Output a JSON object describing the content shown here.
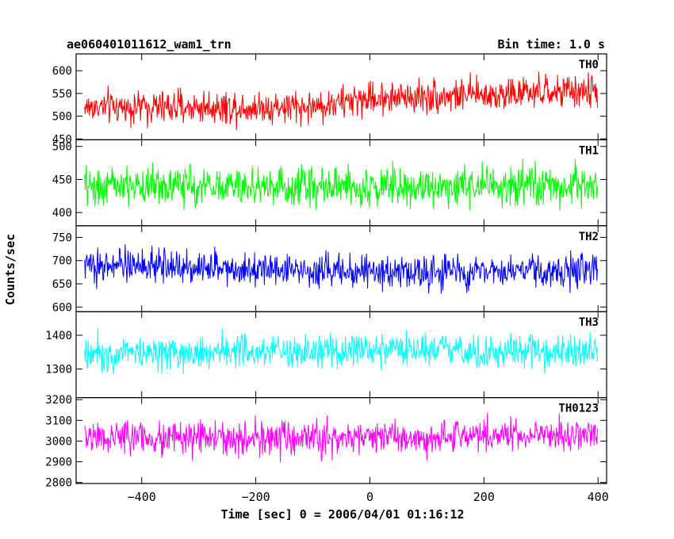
{
  "chart_data": {
    "type": "line",
    "title": "ae060401011612_wam1_trn",
    "subtitle": "Bin time: 1.0 s",
    "xlabel": "Time [sec] 0 = 2006/04/01 01:16:12",
    "ylabel": "Counts/sec",
    "xlim": [
      -515,
      415
    ],
    "xticks": [
      -400,
      -200,
      0,
      200,
      400
    ],
    "xtick_labels": [
      "−400",
      "−200",
      "0",
      "200",
      "400"
    ],
    "x_start": -500,
    "x_end": 399,
    "bin": 1.0,
    "panels": [
      {
        "name": "TH0",
        "color": "#ff0000",
        "ylim": [
          448,
          637
        ],
        "yticks": [
          450,
          500,
          550,
          600
        ],
        "trend": [
          [
            -500,
            520
          ],
          [
            -100,
            520
          ],
          [
            0,
            540
          ],
          [
            400,
            555
          ]
        ],
        "noise": 26
      },
      {
        "name": "TH1",
        "color": "#00ff00",
        "ylim": [
          380,
          510
        ],
        "yticks": [
          400,
          450,
          500
        ],
        "trend": [
          [
            -500,
            440
          ],
          [
            400,
            440
          ]
        ],
        "noise": 21
      },
      {
        "name": "TH2",
        "color": "#0000ff",
        "ylim": [
          590,
          775
        ],
        "yticks": [
          600,
          650,
          700,
          750
        ],
        "trend": [
          [
            -500,
            690
          ],
          [
            -200,
            685
          ],
          [
            0,
            675
          ],
          [
            400,
            678
          ]
        ],
        "noise": 25
      },
      {
        "name": "TH3",
        "color": "#00ffff",
        "ylim": [
          1215,
          1470
        ],
        "yticks": [
          1300,
          1400
        ],
        "trend": [
          [
            -500,
            1350
          ],
          [
            400,
            1352
          ]
        ],
        "noise": 36
      },
      {
        "name": "TH0123",
        "color": "#ff00ff",
        "ylim": [
          2795,
          3210
        ],
        "yticks": [
          2800,
          2900,
          3000,
          3100,
          3200
        ],
        "trend": [
          [
            -500,
            3020
          ],
          [
            -100,
            3005
          ],
          [
            0,
            3020
          ],
          [
            400,
            3030
          ]
        ],
        "noise": 58
      }
    ]
  }
}
